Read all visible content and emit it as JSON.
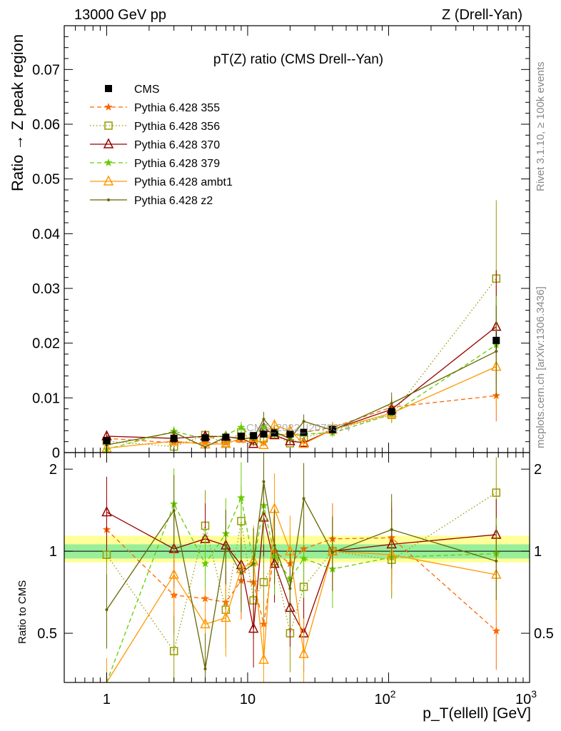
{
  "header": {
    "left": "13000 GeV pp",
    "right": "Z (Drell-Yan)"
  },
  "side_labels": {
    "rivet": "Rivet 3.1.10, ≥ 100k events",
    "mcplots": "mcplots.cern.ch [arXiv:1306.3436]"
  },
  "watermark": "CMS_2022_I2079374",
  "chart_data": [
    {
      "type": "line",
      "title": "pT(Z) ratio (CMS Drell--Yan)",
      "ylabel": "Ratio → Z peak region",
      "xscale": "log",
      "xlim": [
        0.5,
        1000
      ],
      "ylim": [
        0,
        0.078
      ],
      "yticks": [
        0,
        0.01,
        0.02,
        0.03,
        0.04,
        0.05,
        0.06,
        0.07
      ],
      "ytick_labels": [
        "0",
        "0.01",
        "0.02",
        "0.03",
        "0.04",
        "0.05",
        "0.06",
        "0.07"
      ],
      "legend_position": "top-left",
      "x": [
        1,
        3,
        5,
        7,
        9,
        11,
        13,
        15.5,
        20,
        25,
        40,
        105,
        580
      ],
      "series": [
        {
          "name": "CMS",
          "color": "#000000",
          "marker": "square",
          "line": "none",
          "values": [
            0.0022,
            0.0026,
            0.0027,
            0.0028,
            0.003,
            0.0031,
            0.0034,
            0.0036,
            0.0034,
            0.0037,
            0.0042,
            0.0075,
            0.0205
          ]
        },
        {
          "name": "Pythia 6.428 355",
          "color": "#ff6600",
          "marker": "star",
          "line": "dashed",
          "values": [
            0.0026,
            0.0018,
            0.0018,
            0.0018,
            0.0023,
            0.0023,
            0.0018,
            0.0036,
            0.003,
            0.0037,
            0.0046,
            0.0083,
            0.0104
          ]
        },
        {
          "name": "Pythia 6.428 356",
          "color": "#999900",
          "marker": "square-open",
          "line": "dotted",
          "values": [
            0.0021,
            0.0011,
            0.0032,
            0.0017,
            0.0037,
            0.0021,
            0.0026,
            0.0033,
            0.0017,
            0.0027,
            0.0042,
            0.0069,
            0.0318
          ]
        },
        {
          "name": "Pythia 6.428 370",
          "color": "#990000",
          "marker": "triangle-open",
          "line": "solid",
          "values": [
            0.003,
            0.0026,
            0.003,
            0.0029,
            0.0026,
            0.0016,
            0.0045,
            0.0032,
            0.0021,
            0.0018,
            0.0042,
            0.0079,
            0.023
          ]
        },
        {
          "name": "Pythia 6.428 379",
          "color": "#66cc00",
          "marker": "star",
          "line": "dashed",
          "values": [
            0.0006,
            0.0039,
            0.0025,
            0.0032,
            0.0046,
            0.0027,
            0.0047,
            0.0034,
            0.0028,
            0.0034,
            0.0036,
            0.007,
            0.0197
          ]
        },
        {
          "name": "Pythia 6.428 ambt1",
          "color": "#ff9900",
          "marker": "triangle-open",
          "line": "solid",
          "values": [
            0.0008,
            0.0021,
            0.0015,
            0.0016,
            0.0026,
            0.0027,
            0.0014,
            0.005,
            0.004,
            0.0016,
            0.0042,
            0.0072,
            0.0157
          ]
        },
        {
          "name": "Pythia 6.428 z2",
          "color": "#666600",
          "marker": "dot",
          "line": "solid",
          "values": [
            0.0014,
            0.0037,
            0.001,
            0.0029,
            0.0025,
            0.0027,
            0.0061,
            0.0038,
            0.0025,
            0.0057,
            0.0041,
            0.009,
            0.0185
          ]
        }
      ]
    },
    {
      "type": "line",
      "title": "",
      "ylabel": "Ratio to CMS",
      "xlabel": "p_T(ellell) [GeV]",
      "xscale": "log",
      "xlim": [
        0.5,
        1000
      ],
      "ylim": [
        0.33,
        2.3
      ],
      "yticks": [
        0.5,
        1,
        2
      ],
      "ytick_labels": [
        "0.5",
        "1",
        "2"
      ],
      "xtick_labels": [
        "1",
        "10",
        "10^2",
        "10^3"
      ],
      "reference_band": {
        "inner": [
          0.94,
          1.06
        ],
        "outer": [
          0.91,
          1.14
        ],
        "inner_color": "#99ee99",
        "outer_color": "#ffff99"
      },
      "x": [
        1,
        3,
        5,
        7,
        9,
        11,
        13,
        15.5,
        20,
        25,
        40,
        105,
        580
      ],
      "series": [
        {
          "name": "Pythia 6.428 355",
          "values": [
            1.2,
            0.69,
            0.67,
            0.65,
            0.78,
            0.77,
            0.54,
            1.0,
            0.9,
            1.02,
            1.11,
            1.12,
            0.51
          ]
        },
        {
          "name": "Pythia 6.428 356",
          "values": [
            0.97,
            0.43,
            1.24,
            0.61,
            1.29,
            0.66,
            0.77,
            0.92,
            0.5,
            0.74,
            1.0,
            0.93,
            1.64
          ]
        },
        {
          "name": "Pythia 6.428 370",
          "values": [
            1.39,
            1.02,
            1.11,
            1.05,
            0.89,
            0.52,
            1.33,
            0.9,
            0.62,
            0.5,
            1.0,
            1.06,
            1.15
          ]
        },
        {
          "name": "Pythia 6.428 379",
          "values": [
            0.28,
            1.49,
            0.9,
            1.16,
            1.57,
            0.9,
            1.47,
            0.96,
            0.79,
            0.94,
            0.86,
            0.95,
            0.98
          ]
        },
        {
          "name": "Pythia 6.428 ambt1",
          "values": [
            0.3,
            0.82,
            0.54,
            0.57,
            0.86,
            0.92,
            0.4,
            1.43,
            1.0,
            0.42,
            1.0,
            0.97,
            0.82
          ]
        },
        {
          "name": "Pythia 6.428 z2",
          "values": [
            0.61,
            1.41,
            0.37,
            1.05,
            0.83,
            0.9,
            1.8,
            1.05,
            0.73,
            1.56,
            0.99,
            1.2,
            0.92
          ]
        }
      ]
    }
  ]
}
